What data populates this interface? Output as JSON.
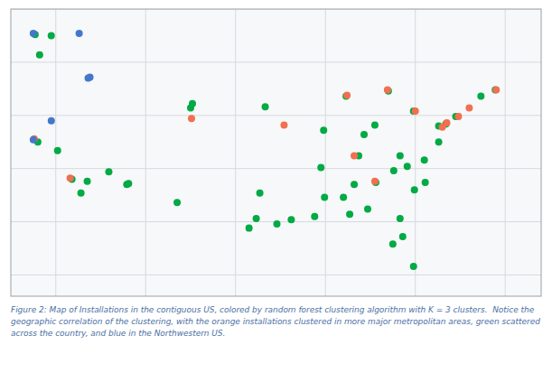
{
  "chart_data": {
    "type": "scatter",
    "annotations": [
      "Figure 2: Map of Installations in the contiguous US, colored by random forest clustering algorithm with K = 3 clusters.  Notice the\ngeographic correlation of the clustering, with the orange installations clustered in more major metropolitan areas, green scattered\nacross the country, and blue in the Northwestern US."
    ],
    "xlim": [
      -125,
      -66
    ],
    "ylim": [
      23,
      50
    ],
    "xticks": [
      -120,
      -110,
      -100,
      -90,
      -80,
      -70
    ],
    "yticks": [
      25,
      30,
      35,
      40,
      45,
      50
    ],
    "grid": true,
    "tick_labels": false,
    "series": [
      {
        "color": "#00aa44",
        "x": [
          -122.3,
          -120.5,
          -121.8,
          -105.0,
          -104.8,
          -96.7,
          -90.2,
          -87.7,
          -83.0,
          -80.2,
          -77.4,
          -76.6,
          -75.5,
          -79.0,
          -80.9,
          -82.4,
          -84.4,
          -86.3,
          -86.8,
          -88.0,
          -90.1,
          -91.2,
          -93.8,
          -97.3,
          -97.7,
          -95.4,
          -98.5,
          -106.5,
          -112.1,
          -111.9,
          -114.1,
          -116.5,
          -117.2,
          -118.2,
          -119.8,
          -122.0,
          -90.5,
          -85.7,
          -84.5,
          -81.7,
          -77.4,
          -71.1,
          -72.7,
          -87.3,
          -85.3,
          -81.7,
          -80.1,
          -78.9,
          -81.4,
          -82.5,
          -80.2
        ],
        "values": [
          47.6,
          47.5,
          45.7,
          40.7,
          41.1,
          40.8,
          38.6,
          41.8,
          42.3,
          40.4,
          39.0,
          39.2,
          39.9,
          35.8,
          35.2,
          34.8,
          33.7,
          36.2,
          33.5,
          32.3,
          32.3,
          30.5,
          30.2,
          32.7,
          30.3,
          29.8,
          29.4,
          31.8,
          33.5,
          33.6,
          34.7,
          33.8,
          32.7,
          34.0,
          36.7,
          37.5,
          35.1,
          38.2,
          39.1,
          36.2,
          37.5,
          42.4,
          41.8,
          30.7,
          31.2,
          30.3,
          33.0,
          33.7,
          28.6,
          27.9,
          25.8
        ]
      },
      {
        "color": "#f07050",
        "x": [
          -118.4,
          -122.4,
          -104.9,
          -94.6,
          -87.6,
          -83.1,
          -80.0,
          -77.0,
          -76.5,
          -75.2,
          -74.0,
          -71.0,
          -86.8,
          -84.5
        ],
        "values": [
          34.1,
          37.8,
          39.7,
          39.1,
          41.9,
          42.4,
          40.4,
          38.9,
          39.3,
          39.9,
          40.7,
          42.4,
          36.2,
          33.8
        ]
      },
      {
        "color": "#4477cc",
        "x": [
          -122.5,
          -117.4,
          -116.2,
          -116.4,
          -120.5,
          -122.5
        ],
        "values": [
          47.7,
          47.7,
          43.6,
          43.5,
          39.5,
          37.7
        ]
      }
    ]
  }
}
